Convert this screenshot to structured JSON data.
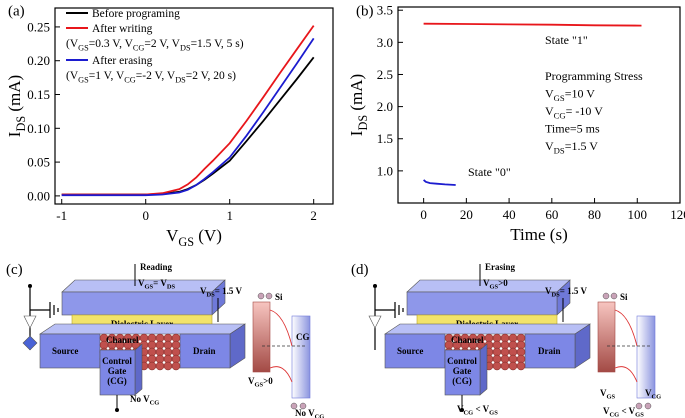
{
  "chart_data": [
    {
      "type": "line",
      "panel": "(a)",
      "xlabel": [
        "V",
        "GS",
        " (V)"
      ],
      "ylabel": [
        "I",
        "DS",
        " (mA)"
      ],
      "xlim": [
        -1.08,
        2.23
      ],
      "ylim": [
        -0.012,
        0.278
      ],
      "xticks": [
        -1,
        0,
        1,
        2
      ],
      "yticks": [
        {
          "value": 0,
          "label": "0.00"
        },
        0.05,
        {
          "value": 0.1,
          "label": "0.10"
        },
        0.15,
        {
          "value": 0.2,
          "label": "0.20"
        },
        0.25
      ],
      "x": [
        -1,
        -0.5,
        0,
        0.2,
        0.4,
        0.5,
        0.6,
        0.7,
        0.8,
        1.0,
        1.2,
        1.4,
        1.6,
        1.8,
        2.0
      ],
      "series": [
        {
          "name": "Before programing",
          "color": "#000000",
          "values": [
            0.002,
            0.002,
            0.002,
            0.003,
            0.006,
            0.01,
            0.016,
            0.024,
            0.033,
            0.052,
            0.081,
            0.111,
            0.142,
            0.173,
            0.205
          ]
        },
        {
          "name": "After writing",
          "color": "#e8161b",
          "note": [
            "(V",
            "GS",
            "=0.3 V, V",
            "CG",
            "=2 V, V",
            "DS",
            "=1.5 V, 5 s)"
          ],
          "values": [
            0.002,
            0.002,
            0.002,
            0.004,
            0.01,
            0.017,
            0.027,
            0.04,
            0.052,
            0.078,
            0.111,
            0.146,
            0.182,
            0.217,
            0.252
          ]
        },
        {
          "name": "After erasing",
          "color": "#1c1ccf",
          "note": [
            "(V",
            "GS",
            "=1 V, V",
            "CG",
            "=-2 V, V",
            "DS",
            "=2 V, 20 s)"
          ],
          "values": [
            0.001,
            0.001,
            0.001,
            0.002,
            0.005,
            0.009,
            0.016,
            0.025,
            0.035,
            0.057,
            0.089,
            0.124,
            0.16,
            0.196,
            0.233
          ]
        }
      ]
    },
    {
      "type": "line",
      "panel": "(b)",
      "xlabel": "Time (s)",
      "ylabel": [
        "I",
        "DS",
        " (mA)"
      ],
      "xlim": [
        -12,
        120
      ],
      "ylim": [
        0.5,
        3.55
      ],
      "xticks": [
        0,
        20,
        40,
        60,
        80,
        100,
        120
      ],
      "yticks": [
        {
          "value": 1,
          "label": "1.0"
        },
        1.5,
        {
          "value": 2,
          "label": "2.0"
        },
        2.5,
        {
          "value": 3,
          "label": "3.0"
        },
        3.5
      ],
      "series": [
        {
          "name": "State \"1\"",
          "color": "#e8161b",
          "x": [
            0,
            20,
            40,
            60,
            80,
            102
          ],
          "values": [
            3.29,
            3.285,
            3.28,
            3.275,
            3.265,
            3.26
          ]
        },
        {
          "name": "State \"0\"",
          "color": "#1c1ccf",
          "x": [
            0,
            1,
            3,
            6,
            10,
            15
          ],
          "values": [
            0.86,
            0.83,
            0.81,
            0.8,
            0.79,
            0.78
          ]
        }
      ],
      "stress": [
        [
          "Programming Stress"
        ],
        [
          "V",
          "GS",
          "=10 V"
        ],
        [
          "V",
          "CG",
          "= -10 V"
        ],
        [
          "Time=5 ms"
        ],
        [
          "V",
          "DS",
          "=1.5 V"
        ]
      ]
    }
  ],
  "diagrams": [
    {
      "label": "(c)",
      "mode": "Reading",
      "bias": [
        "V",
        "GS",
        "= V",
        "DS"
      ],
      "drain_bias": [
        "V",
        "DS",
        "= 1.5 V"
      ],
      "dielectric": "Dielectric Layer",
      "source": "Source",
      "channel": "Channel",
      "drain": "Drain",
      "gate": [
        "Control",
        "Gate",
        "(CG)"
      ],
      "gate_bias": [
        "No V",
        "CG"
      ],
      "band_si": "Si",
      "band_cg": "CG",
      "band_left": [
        "V",
        "GS",
        ">0"
      ],
      "band_right": [
        "No V",
        "CG"
      ]
    },
    {
      "label": "(d)",
      "mode": "Erasing",
      "bias": [
        "V",
        "GS",
        ">0"
      ],
      "drain_bias": [
        "V",
        "DS",
        "= 1.5 V"
      ],
      "dielectric": "Dielectric Layer",
      "source": "Source",
      "channel": "Channel",
      "drain": "Drain",
      "gate": [
        "Control",
        "Gate",
        "(CG)"
      ],
      "gate_bias": [
        "V",
        "CG",
        " < V",
        "GS"
      ],
      "band_si": "Si",
      "band_left": [
        "V",
        "GS"
      ],
      "band_right": [
        "V",
        "CG"
      ],
      "band_caption": [
        "V",
        "CG",
        " < V",
        "GS"
      ]
    }
  ]
}
